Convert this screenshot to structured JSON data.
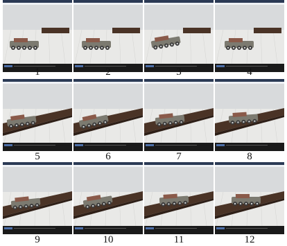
{
  "frames": [
    {
      "label": "1"
    },
    {
      "label": "2"
    },
    {
      "label": "3"
    },
    {
      "label": "4"
    },
    {
      "label": "5"
    },
    {
      "label": "6"
    },
    {
      "label": "7"
    },
    {
      "label": "8"
    },
    {
      "label": "9"
    },
    {
      "label": "10"
    },
    {
      "label": "11"
    },
    {
      "label": "12"
    }
  ],
  "colors": {
    "wall": "#d8dadc",
    "floor": "#e9e9e7",
    "platform": "#4a3326",
    "robot_body": "#7c7a70",
    "window_bar": "#2b3a55",
    "statusbar": "#1a1a1a"
  }
}
